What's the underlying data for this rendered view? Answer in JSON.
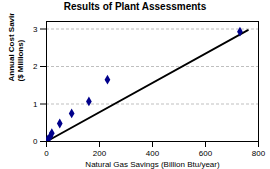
{
  "chart_data": {
    "type": "scatter",
    "title": "Results of Plant Assessments",
    "xlabel": "Natural Gas Savings (Billion Btu/year)",
    "ylabel": "Annual Cost Savings\n($ Millions)",
    "series": [
      {
        "type": "scatter",
        "color": "#00008B",
        "marker": "diamond",
        "x": [
          5,
          15,
          20,
          50,
          95,
          160,
          230,
          730
        ],
        "values": [
          0.05,
          0.15,
          0.22,
          0.48,
          0.75,
          1.07,
          1.65,
          2.93
        ]
      },
      {
        "type": "line",
        "color": "#000000",
        "line_style": "solid",
        "x": [
          0,
          760
        ],
        "values": [
          0,
          2.97
        ]
      }
    ],
    "xlim": [
      0,
      800
    ],
    "ylim": [
      0,
      3.2
    ],
    "xticks": [
      0,
      200,
      400,
      600,
      800
    ],
    "yticks": [
      0,
      1,
      2,
      3
    ],
    "grid": "y"
  }
}
